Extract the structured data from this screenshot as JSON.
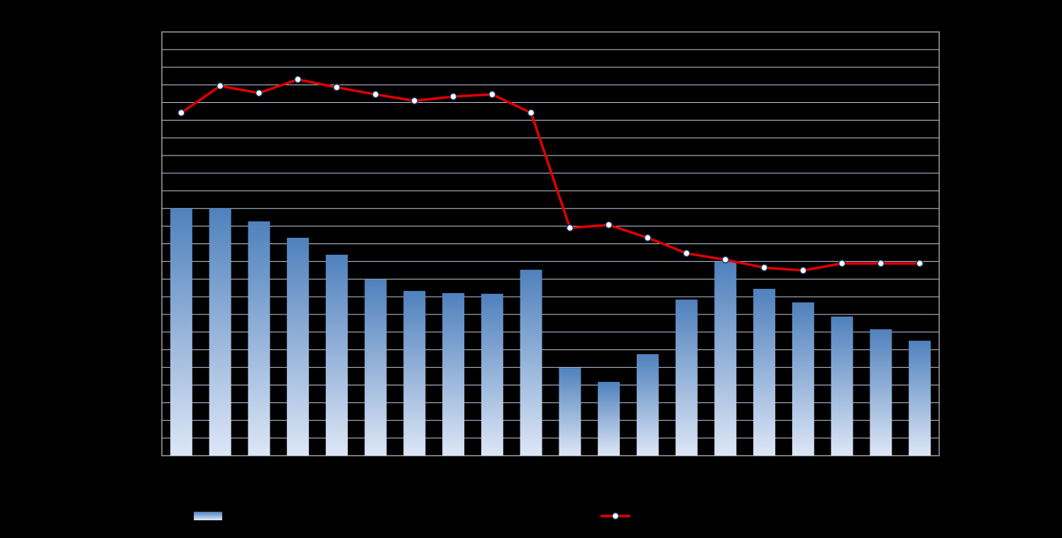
{
  "chart_data": {
    "type": "bar-line",
    "categories": [
      null,
      null,
      null,
      null,
      null,
      null,
      null,
      null,
      null,
      null,
      null,
      null,
      null,
      null,
      null,
      null,
      null,
      null,
      null,
      null
    ],
    "series": [
      {
        "type": "bar",
        "color": "#4f81bd",
        "values": [
          14.0,
          14.03,
          13.27,
          12.34,
          11.38,
          9.97,
          9.33,
          9.21,
          9.17,
          10.53,
          4.98,
          4.18,
          5.75,
          8.84,
          10.97,
          9.45,
          8.68,
          7.88,
          7.16,
          6.51
        ]
      },
      {
        "type": "line",
        "color": "#e00000",
        "values": [
          19.42,
          20.94,
          20.54,
          21.31,
          20.86,
          20.46,
          20.1,
          20.34,
          20.46,
          19.42,
          12.9,
          13.07,
          12.34,
          11.46,
          11.1,
          10.65,
          10.49,
          10.89,
          10.89,
          10.89
        ]
      }
    ],
    "ylim": [
      0,
      24
    ],
    "yticks": [
      0,
      1,
      2,
      3,
      4,
      5,
      6,
      7,
      8,
      9,
      10,
      11,
      12,
      13,
      14,
      15,
      16,
      17,
      18,
      19,
      20,
      21,
      22,
      23,
      24
    ],
    "grid": true
  }
}
